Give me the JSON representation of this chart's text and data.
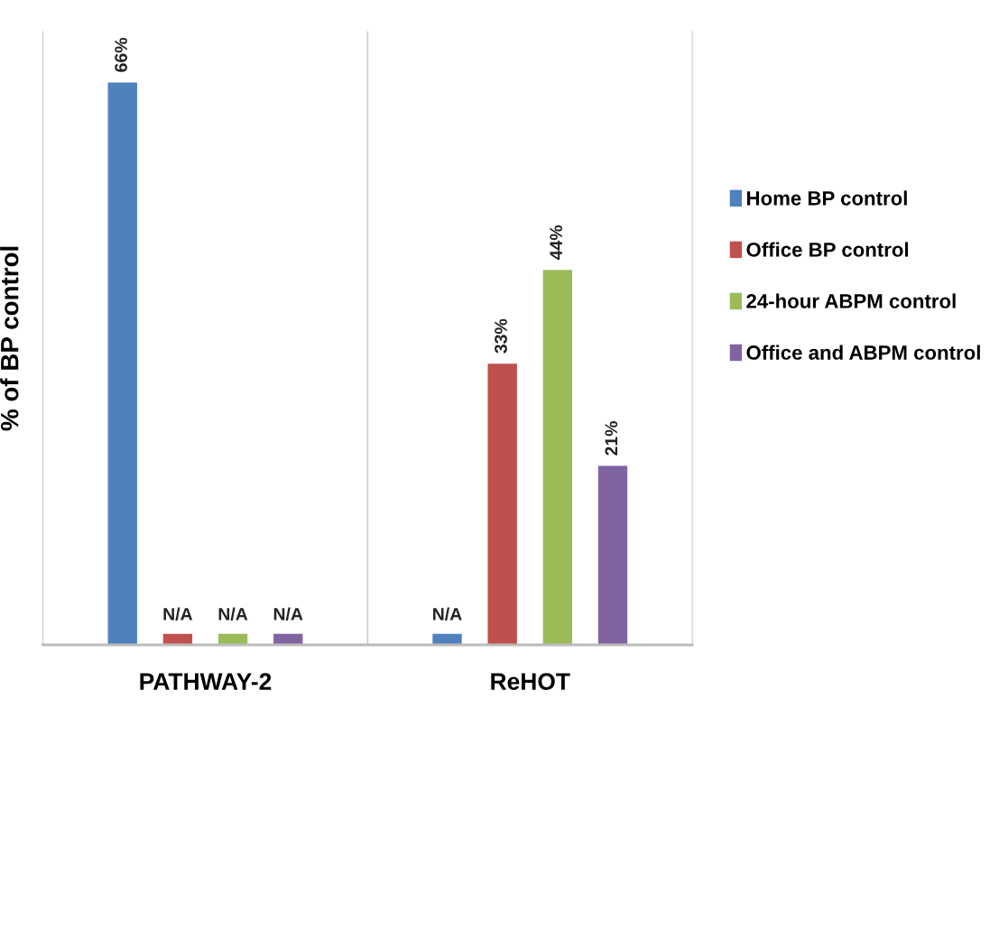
{
  "chart_data": {
    "type": "bar",
    "ylabel": "% of BP control",
    "categories": [
      "PATHWAY-2",
      "ReHOT"
    ],
    "series": [
      {
        "name": "Home BP control",
        "color": "#4f81bd",
        "values": [
          66,
          1.3
        ],
        "value_labels": [
          "66%",
          "N/A"
        ]
      },
      {
        "name": "Office BP control",
        "color": "#c0504d",
        "values": [
          1.3,
          33
        ],
        "value_labels": [
          "N/A",
          "33%"
        ]
      },
      {
        "name": "24-hour ABPM control",
        "color": "#9bbb59",
        "values": [
          1.3,
          44
        ],
        "value_labels": [
          "N/A",
          "44%"
        ]
      },
      {
        "name": "Office and ABPM control",
        "color": "#8064a2",
        "values": [
          1.3,
          21
        ],
        "value_labels": [
          "N/A",
          "21%"
        ]
      }
    ],
    "ylim": [
      0,
      72
    ],
    "tick_labels": "x",
    "grid": false,
    "legend": "right"
  }
}
